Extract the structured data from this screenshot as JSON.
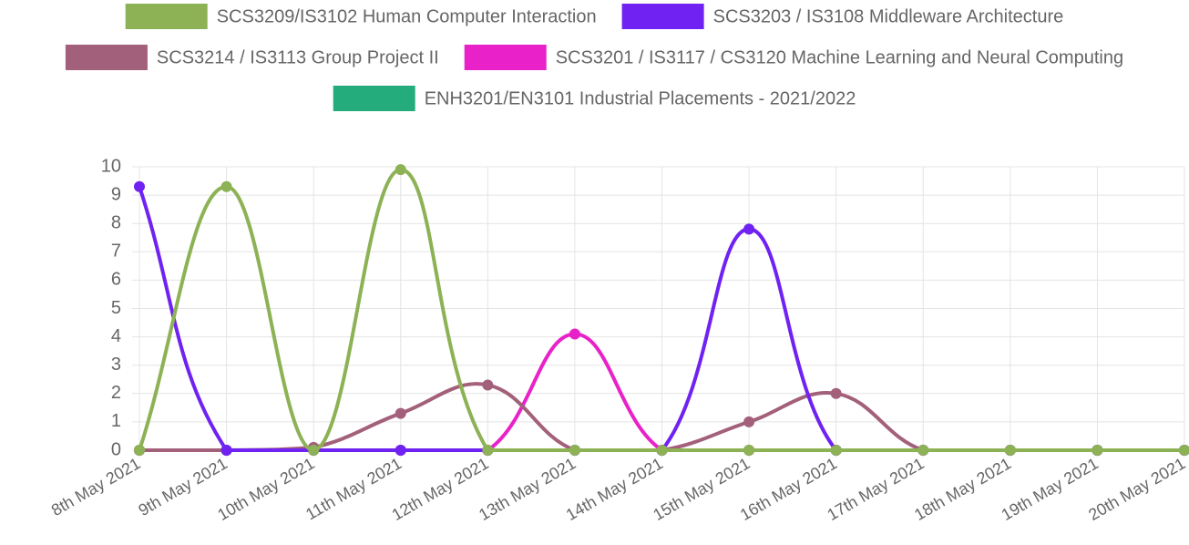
{
  "chart_data": {
    "type": "line",
    "categories": [
      "8th May 2021",
      "9th May 2021",
      "10th May 2021",
      "11th May 2021",
      "12th May 2021",
      "13th May 2021",
      "14th May 2021",
      "15th May 2021",
      "16th May 2021",
      "17th May 2021",
      "18th May 2021",
      "19th May 2021",
      "20th May 2021"
    ],
    "series": [
      {
        "name": "SCS3209/IS3102 Human Computer Interaction",
        "color": "#8db255",
        "values": [
          0,
          9.3,
          0,
          9.9,
          0,
          0,
          0,
          0,
          0,
          0,
          0,
          0,
          0
        ]
      },
      {
        "name": "SCS3203 / IS3108 Middleware Architecture",
        "color": "#6f22f2",
        "values": [
          9.3,
          0,
          0,
          0,
          0,
          0,
          0,
          7.8,
          0,
          0,
          0,
          0,
          0
        ]
      },
      {
        "name": "SCS3214 / IS3113 Group Project II",
        "color": "#a3607a",
        "values": [
          0,
          0,
          0.1,
          1.3,
          2.3,
          0,
          0,
          1.0,
          2.0,
          0,
          0,
          0,
          0
        ]
      },
      {
        "name": "SCS3201 / IS3117 / CS3120 Machine Learning and Neural Computing",
        "color": "#e822c8",
        "values": [
          0,
          0,
          0,
          0,
          0,
          4.1,
          0,
          0,
          0,
          0,
          0,
          0,
          0
        ]
      },
      {
        "name": "ENH3201/EN3101 Industrial Placements - 2021/2022",
        "color": "#25ac7c",
        "values": [
          0,
          0,
          0,
          0,
          0,
          0,
          0,
          0,
          0,
          0,
          0,
          0,
          0
        ]
      }
    ],
    "ylim": [
      0,
      10
    ],
    "yticks": [
      0,
      1,
      2,
      3,
      4,
      5,
      6,
      7,
      8,
      9,
      10
    ],
    "grid": true,
    "legend": "top"
  }
}
